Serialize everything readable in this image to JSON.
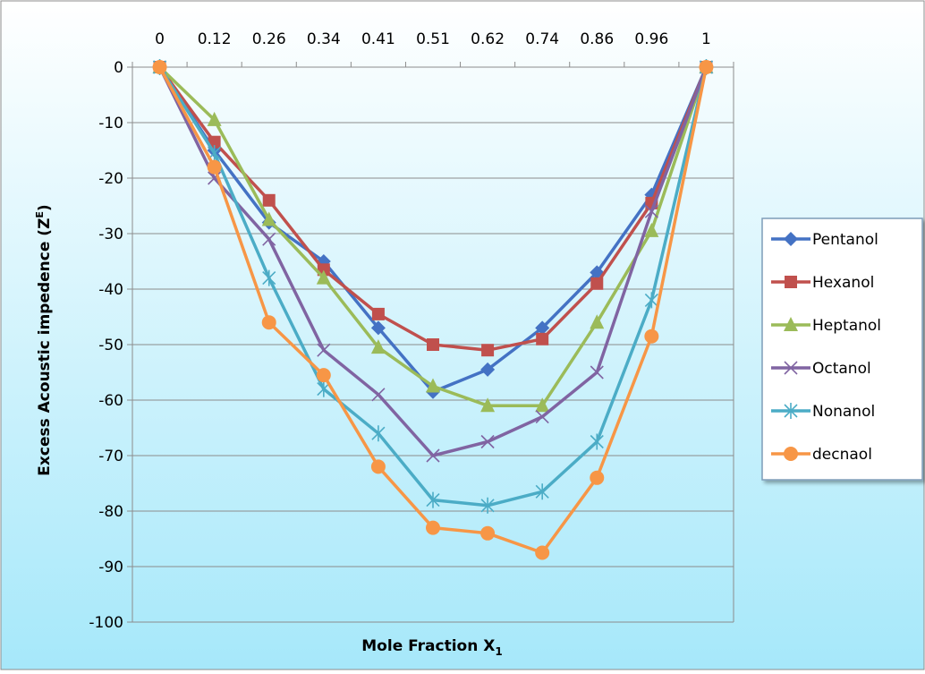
{
  "chart_data": {
    "type": "line",
    "title": "",
    "xlabel": "Mole Fraction X",
    "xlabel_sub": "1",
    "ylabel": "Excess Acoustic impedence  (Z",
    "ylabel_sup": "E",
    "ylabel_end": ")",
    "categories": [
      "0",
      "0.12",
      "0.26",
      "0.34",
      "0.41",
      "0.51",
      "0.62",
      "0.74",
      "0.86",
      "0.96",
      "1"
    ],
    "y_ticks": [
      "0",
      "-10",
      "-20",
      "-30",
      "-40",
      "-50",
      "-60",
      "-70",
      "-80",
      "-90",
      "-100"
    ],
    "ylim": [
      -100,
      0
    ],
    "grid": true,
    "legend_position": "right",
    "series": [
      {
        "name": "Pentanol",
        "color": "#4472C4",
        "marker": "diamond",
        "values": [
          0,
          -15,
          -28,
          -35,
          -47,
          -58.5,
          -54.5,
          -47,
          -37,
          -23,
          0
        ]
      },
      {
        "name": "Hexanol",
        "color": "#C0504D",
        "marker": "square",
        "values": [
          0,
          -13.5,
          -24,
          -36.5,
          -44.5,
          -50,
          -51,
          -49,
          -39,
          -24.5,
          0
        ]
      },
      {
        "name": "Heptanol",
        "color": "#9BBB59",
        "marker": "triangle",
        "values": [
          0,
          -9.5,
          -27.5,
          -38,
          -50.5,
          -57.5,
          -61,
          -61,
          -46,
          -29.5,
          0
        ]
      },
      {
        "name": "Octanol",
        "color": "#8064A2",
        "marker": "x",
        "values": [
          0,
          -20,
          -31,
          -51,
          -59,
          -70,
          -67.5,
          -63,
          -55,
          -26,
          0
        ]
      },
      {
        "name": "Nonanol",
        "color": "#4BACC6",
        "marker": "star",
        "values": [
          0,
          -15.5,
          -38,
          -58,
          -66,
          -78,
          -79,
          -76.5,
          -67.5,
          -42,
          0
        ]
      },
      {
        "name": "decnaol",
        "color": "#F79646",
        "marker": "circle",
        "values": [
          0,
          -18,
          -46,
          -55.5,
          -72,
          -83,
          -84,
          -87.5,
          -74,
          -48.5,
          0
        ]
      }
    ]
  },
  "colors": {
    "background_top": "#FFFFFF",
    "background_bottom": "#A6E8FA",
    "gridline": "#8C8C8C",
    "legend_border": "#7F9DB9"
  }
}
